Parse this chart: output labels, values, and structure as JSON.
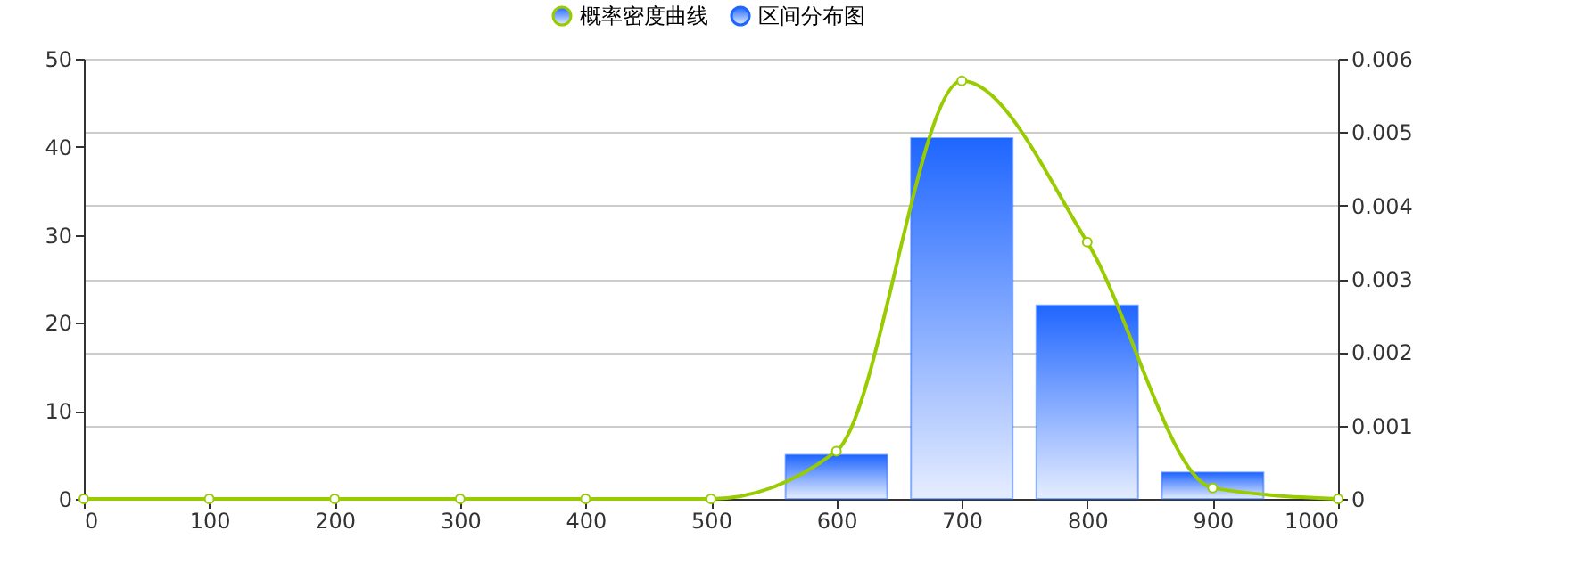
{
  "chart_data": {
    "type": "bar",
    "xlim": [
      0,
      1000
    ],
    "xticks": [
      0,
      100,
      200,
      300,
      400,
      500,
      600,
      700,
      800,
      900,
      1000
    ],
    "ylim": [
      0,
      50
    ],
    "yticks": [
      0,
      10,
      20,
      30,
      40,
      50
    ],
    "y2lim": [
      0,
      0.006
    ],
    "y2ticks": [
      0,
      0.001,
      0.002,
      0.003,
      0.004,
      0.005,
      0.006
    ],
    "grid": "y",
    "legend": "top",
    "marker": "circle",
    "line_style": "solid",
    "series": [
      {
        "name": "区间分布图",
        "color": "#1f66ff",
        "x": [
          600,
          700,
          800,
          900
        ],
        "values": [
          5,
          41,
          22,
          3
        ]
      },
      {
        "name": "概率密度曲线",
        "type": "line",
        "axis": "y2",
        "color": "#99cc00",
        "x": [
          0,
          100,
          200,
          300,
          400,
          500,
          600,
          700,
          800,
          900,
          1000
        ],
        "values": [
          0,
          0,
          0,
          0,
          0,
          0,
          0.00065,
          0.0057,
          0.0035,
          0.00015,
          0
        ]
      }
    ]
  }
}
